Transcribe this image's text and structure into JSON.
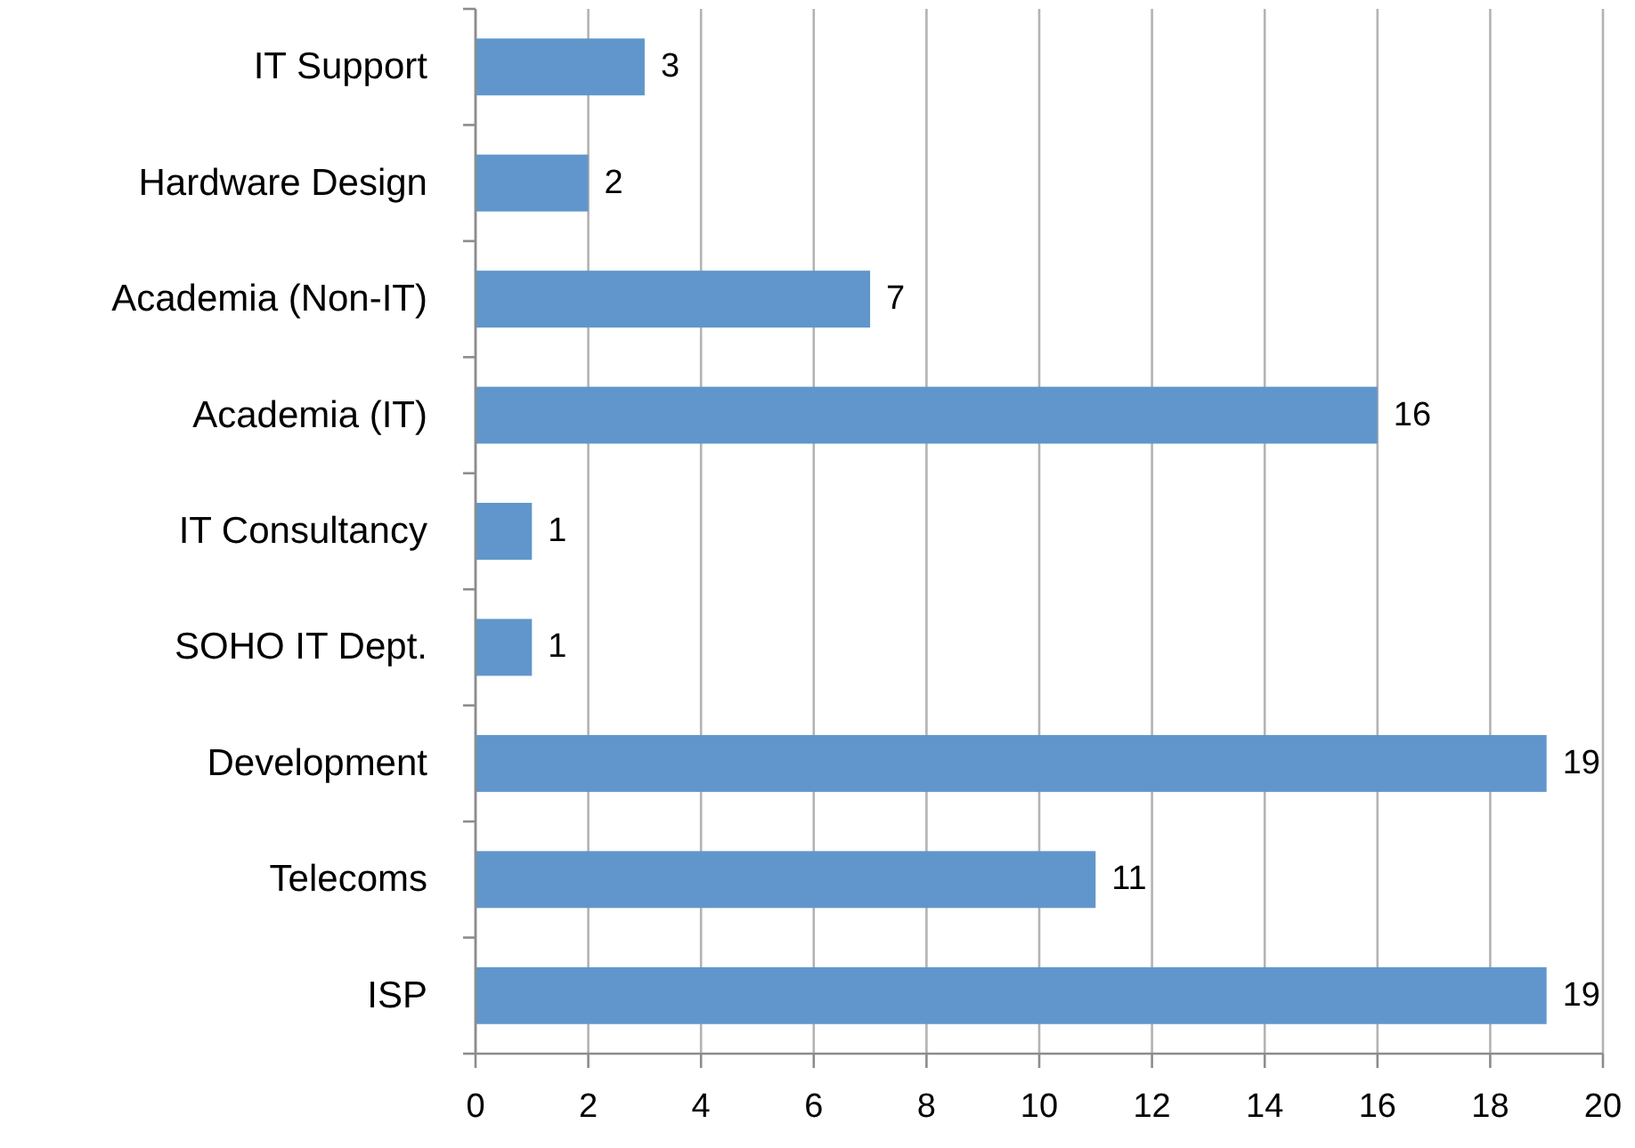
{
  "chart_data": {
    "type": "bar",
    "orientation": "horizontal",
    "categories": [
      "IT Support",
      "Hardware Design",
      "Academia (Non-IT)",
      "Academia (IT)",
      "IT Consultancy",
      "SOHO IT Dept.",
      "Development",
      "Telecoms",
      "ISP"
    ],
    "values": [
      3,
      2,
      7,
      16,
      1,
      1,
      19,
      11,
      19
    ],
    "color": "#6096cb",
    "xlim": [
      0,
      20
    ],
    "xticks": [
      0,
      2,
      4,
      6,
      8,
      10,
      12,
      14,
      16,
      18,
      20
    ],
    "grid": "x",
    "data_labels": true
  }
}
